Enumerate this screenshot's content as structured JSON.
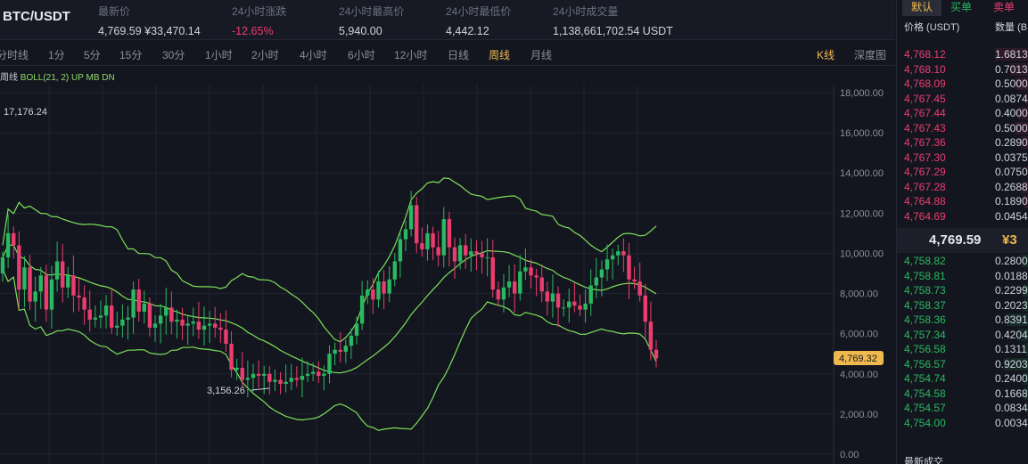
{
  "pair": "BTC/USDT",
  "stats": [
    {
      "label": "最新价",
      "value": "4,769.59 ¥33,470.14",
      "neg": false
    },
    {
      "label": "24小时涨跌",
      "value": "-12.65%",
      "neg": true
    },
    {
      "label": "24小时最高价",
      "value": "5,940.00",
      "neg": false
    },
    {
      "label": "24小时最低价",
      "value": "4,442.12",
      "neg": false
    },
    {
      "label": "24小时成交量",
      "value": "1,138,661,702.54 USDT",
      "neg": false
    }
  ],
  "timeframes": [
    "分时线",
    "1分",
    "5分",
    "15分",
    "30分",
    "1小时",
    "2小时",
    "4小时",
    "6小时",
    "12小时",
    "日线",
    "周线",
    "月线"
  ],
  "active_timeframe": "周线",
  "chart_tabs": [
    "K线",
    "深度图"
  ],
  "boll": {
    "period": "周线",
    "label": "BOLL(21, 2) UP MB DN"
  },
  "annotations": {
    "high": "17,176.24",
    "low": "3,156.26",
    "current": "4,769.32"
  },
  "chart_data": {
    "type": "candlestick",
    "y_ticks": [
      "18,000.00",
      "16,000.00",
      "14,000.00",
      "12,000.00",
      "10,000.00",
      "8,000.00",
      "6,000.00",
      "4,000.00",
      "2,000.00",
      "0.00"
    ],
    "ylim": [
      0,
      18000
    ],
    "colors": {
      "up": "#2ab860",
      "down": "#ea3d6f",
      "boll": "#7ce05a"
    }
  },
  "orderbook": {
    "tabs": {
      "default": "默认",
      "buy": "买单",
      "sell": "卖单"
    },
    "headers": {
      "price": "价格 (USDT)",
      "qty": "数量 (B"
    },
    "asks": [
      {
        "p": "4,768.12",
        "q": "1.6813"
      },
      {
        "p": "4,768.10",
        "q": "0.7013"
      },
      {
        "p": "4,768.09",
        "q": "0.5000"
      },
      {
        "p": "4,767.45",
        "q": "0.0874"
      },
      {
        "p": "4,767.44",
        "q": "0.4000"
      },
      {
        "p": "4,767.43",
        "q": "0.5000"
      },
      {
        "p": "4,767.36",
        "q": "0.2890"
      },
      {
        "p": "4,767.30",
        "q": "0.0375"
      },
      {
        "p": "4,767.29",
        "q": "0.0750"
      },
      {
        "p": "4,767.28",
        "q": "0.2688"
      },
      {
        "p": "4,764.88",
        "q": "0.1890"
      },
      {
        "p": "4,764.69",
        "q": "0.0454"
      }
    ],
    "mid_price": "4,769.59",
    "mid_cny": "¥3",
    "bids": [
      {
        "p": "4,758.82",
        "q": "0.2800"
      },
      {
        "p": "4,758.81",
        "q": "0.0188"
      },
      {
        "p": "4,758.73",
        "q": "0.2299"
      },
      {
        "p": "4,758.37",
        "q": "0.2023"
      },
      {
        "p": "4,758.36",
        "q": "0.8391"
      },
      {
        "p": "4,757.34",
        "q": "0.4204"
      },
      {
        "p": "4,756.58",
        "q": "0.1311"
      },
      {
        "p": "4,756.57",
        "q": "0.9203"
      },
      {
        "p": "4,754.74",
        "q": "0.2400"
      },
      {
        "p": "4,754.58",
        "q": "0.1668"
      },
      {
        "p": "4,754.57",
        "q": "0.0834"
      },
      {
        "p": "4,754.00",
        "q": "0.0034"
      }
    ],
    "latest_trades": "最新成交"
  }
}
